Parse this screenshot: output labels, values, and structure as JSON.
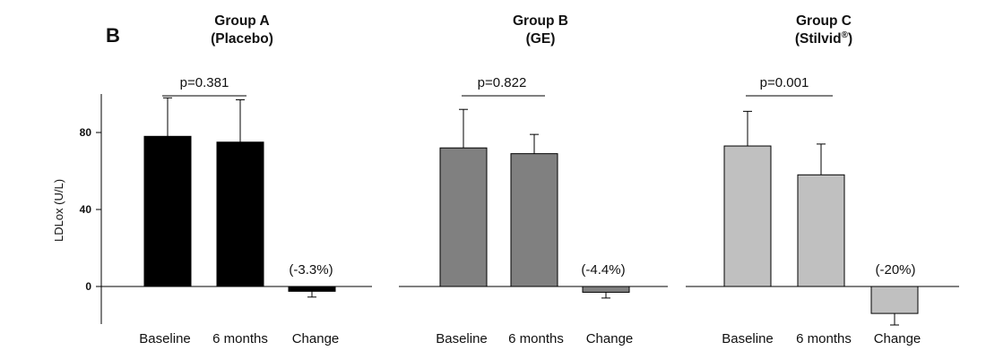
{
  "panel_label": "B",
  "chart_data": [
    {
      "type": "bar",
      "title": "Group A",
      "subtitle": "(Placebo)",
      "ylabel": "LDLox (U/L)",
      "ylim": [
        -12,
        100
      ],
      "yticks": [
        0,
        40,
        80
      ],
      "categories": [
        "Baseline",
        "6 months",
        "Change"
      ],
      "values": [
        78,
        75,
        -2.5
      ],
      "errors": [
        20,
        22,
        3
      ],
      "change_label": "(-3.3%)",
      "pvalue": "p=0.381",
      "color": "#000000"
    },
    {
      "type": "bar",
      "title": "Group B",
      "subtitle": "(GE)",
      "ylabel": "",
      "ylim": [
        -12,
        100
      ],
      "yticks": [],
      "categories": [
        "Baseline",
        "6 months",
        "Change"
      ],
      "values": [
        72,
        69,
        -3
      ],
      "errors": [
        20,
        10,
        3
      ],
      "change_label": "(-4.4%)",
      "pvalue": "p=0.822",
      "color": "#808080"
    },
    {
      "type": "bar",
      "title": "Group C",
      "subtitle": "(Stilvid",
      "subtitle_sup": "®",
      "subtitle_end": ")",
      "ylabel": "",
      "ylim": [
        -12,
        100
      ],
      "yticks": [],
      "categories": [
        "Baseline",
        "6 months",
        "Change"
      ],
      "values": [
        73,
        58,
        -14
      ],
      "errors": [
        18,
        16,
        6
      ],
      "change_label": "(-20%)",
      "pvalue": "p=0.001",
      "color": "#c0c0c0"
    }
  ]
}
